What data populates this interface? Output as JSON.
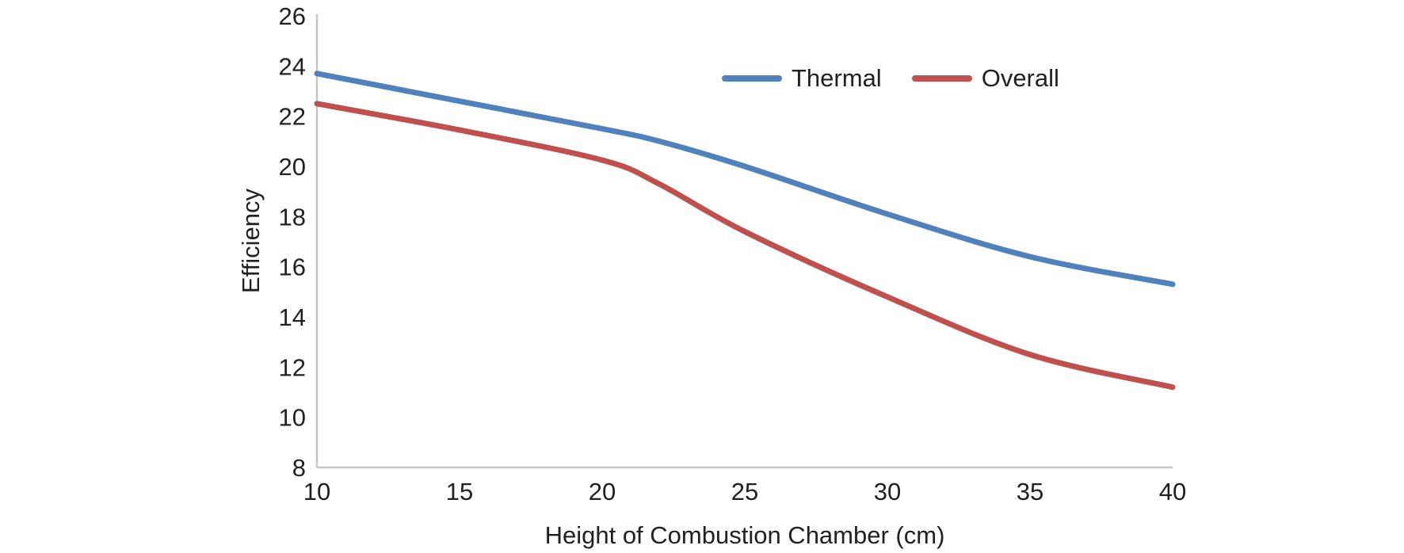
{
  "chart_data": {
    "type": "line",
    "title": "",
    "xlabel": "Height of Combustion Chamber (cm)",
    "ylabel": "Efficiency",
    "xlim": [
      10,
      40
    ],
    "ylim": [
      8,
      26
    ],
    "xticks": [
      10,
      15,
      20,
      25,
      30,
      35,
      40
    ],
    "yticks": [
      8,
      10,
      12,
      14,
      16,
      18,
      20,
      22,
      24,
      26
    ],
    "grid": false,
    "legend_position": "inside-top-right",
    "colors": {
      "axis": "#c9c7c5",
      "text": "#231f20"
    },
    "series": [
      {
        "name": "Thermal",
        "color": "#4f81bd",
        "x": [
          10,
          15,
          20,
          22,
          25,
          30,
          35,
          40
        ],
        "y": [
          23.7,
          22.6,
          21.5,
          21.0,
          20.0,
          18.1,
          16.4,
          15.3
        ]
      },
      {
        "name": "Overall",
        "color": "#c0504d",
        "x": [
          10,
          15,
          20,
          22,
          25,
          30,
          35,
          40
        ],
        "y": [
          22.5,
          21.45,
          20.25,
          19.3,
          17.4,
          14.8,
          12.5,
          11.2
        ]
      }
    ]
  }
}
